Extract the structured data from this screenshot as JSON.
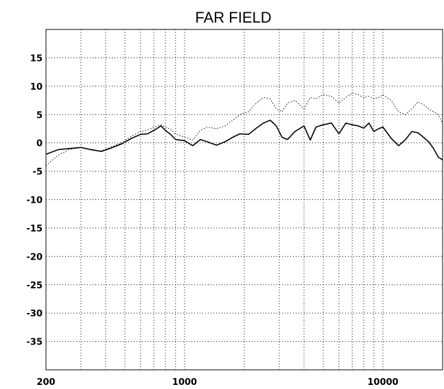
{
  "chart_data": {
    "type": "line",
    "title": "FAR FIELD",
    "xlabel": "",
    "ylabel": "",
    "x_scale": "log",
    "xlim": [
      200,
      20000
    ],
    "ylim": [
      -40,
      20
    ],
    "y_ticks": [
      15,
      10,
      5,
      0,
      -5,
      -10,
      -15,
      -20,
      -25,
      -30,
      -35
    ],
    "y_tick_labels": [
      "15",
      "10",
      "5",
      "0",
      "-5",
      "-10",
      "-15",
      "-20",
      "-25",
      "-30",
      "-35"
    ],
    "x_tick_labels": [
      {
        "value": 200,
        "label": "200"
      },
      {
        "value": 1000,
        "label": "1000"
      },
      {
        "value": 10000,
        "label": "10000"
      }
    ],
    "x_gridlines": [
      300,
      400,
      500,
      600,
      700,
      800,
      900,
      2000,
      3000,
      4000,
      5000,
      6000,
      7000,
      8000,
      9000,
      20000
    ],
    "grid": true,
    "series": [
      {
        "style": "solid",
        "color": "#000000",
        "x": [
          200,
          230,
          260,
          300,
          340,
          380,
          420,
          480,
          540,
          600,
          650,
          700,
          760,
          800,
          850,
          900,
          1000,
          1100,
          1200,
          1300,
          1450,
          1600,
          1750,
          1900,
          2100,
          2300,
          2500,
          2700,
          2900,
          3100,
          3300,
          3600,
          4000,
          4300,
          4600,
          5000,
          5500,
          6000,
          6500,
          7000,
          7500,
          8000,
          8500,
          9000,
          9500,
          10000,
          11000,
          12000,
          13000,
          14000,
          15000,
          16000,
          17000,
          18000,
          19000,
          20000
        ],
        "y": [
          -2,
          -1.2,
          -1,
          -0.8,
          -1.2,
          -1.5,
          -1,
          -0.2,
          0.8,
          1.5,
          1.6,
          2.2,
          3,
          2.2,
          1.5,
          0.6,
          0.4,
          -0.5,
          0.6,
          0.2,
          -0.4,
          0.2,
          1,
          1.6,
          1.5,
          2.6,
          3.5,
          4,
          3,
          1,
          0.6,
          2,
          3,
          0.5,
          2.8,
          3.2,
          3.5,
          1.6,
          3.5,
          3.2,
          3,
          2.6,
          3.5,
          2,
          2.5,
          2.8,
          0.8,
          -0.5,
          0.6,
          2,
          1.8,
          1,
          0.2,
          -1,
          -2.5,
          -3
        ]
      },
      {
        "style": "dotted",
        "color": "#000000",
        "x": [
          200,
          230,
          260,
          300,
          340,
          380,
          420,
          480,
          540,
          600,
          650,
          700,
          760,
          800,
          850,
          900,
          1000,
          1100,
          1200,
          1300,
          1450,
          1600,
          1750,
          1900,
          2100,
          2300,
          2500,
          2700,
          2900,
          3100,
          3300,
          3600,
          4000,
          4300,
          4600,
          5000,
          5500,
          6000,
          6500,
          7000,
          7500,
          8000,
          8500,
          9000,
          9500,
          10000,
          11000,
          12000,
          13000,
          14000,
          15000,
          16000,
          17000,
          18000,
          19000,
          20000
        ],
        "y": [
          -4,
          -2.2,
          -1.2,
          -0.8,
          -1.3,
          -1.4,
          -0.8,
          0,
          1.2,
          2,
          2.3,
          2.8,
          3.2,
          2.8,
          2.4,
          1.6,
          1,
          0.5,
          2.2,
          2.8,
          2.5,
          3,
          4,
          5,
          5.5,
          7,
          8,
          7.8,
          6,
          5.5,
          7,
          7.5,
          6,
          8,
          7.8,
          8.5,
          8.2,
          7,
          8,
          8.8,
          8.5,
          8,
          8.2,
          7.8,
          8,
          8.5,
          7.5,
          5.5,
          5,
          6,
          7.2,
          6.8,
          6,
          5.5,
          5,
          3.5
        ]
      }
    ]
  }
}
